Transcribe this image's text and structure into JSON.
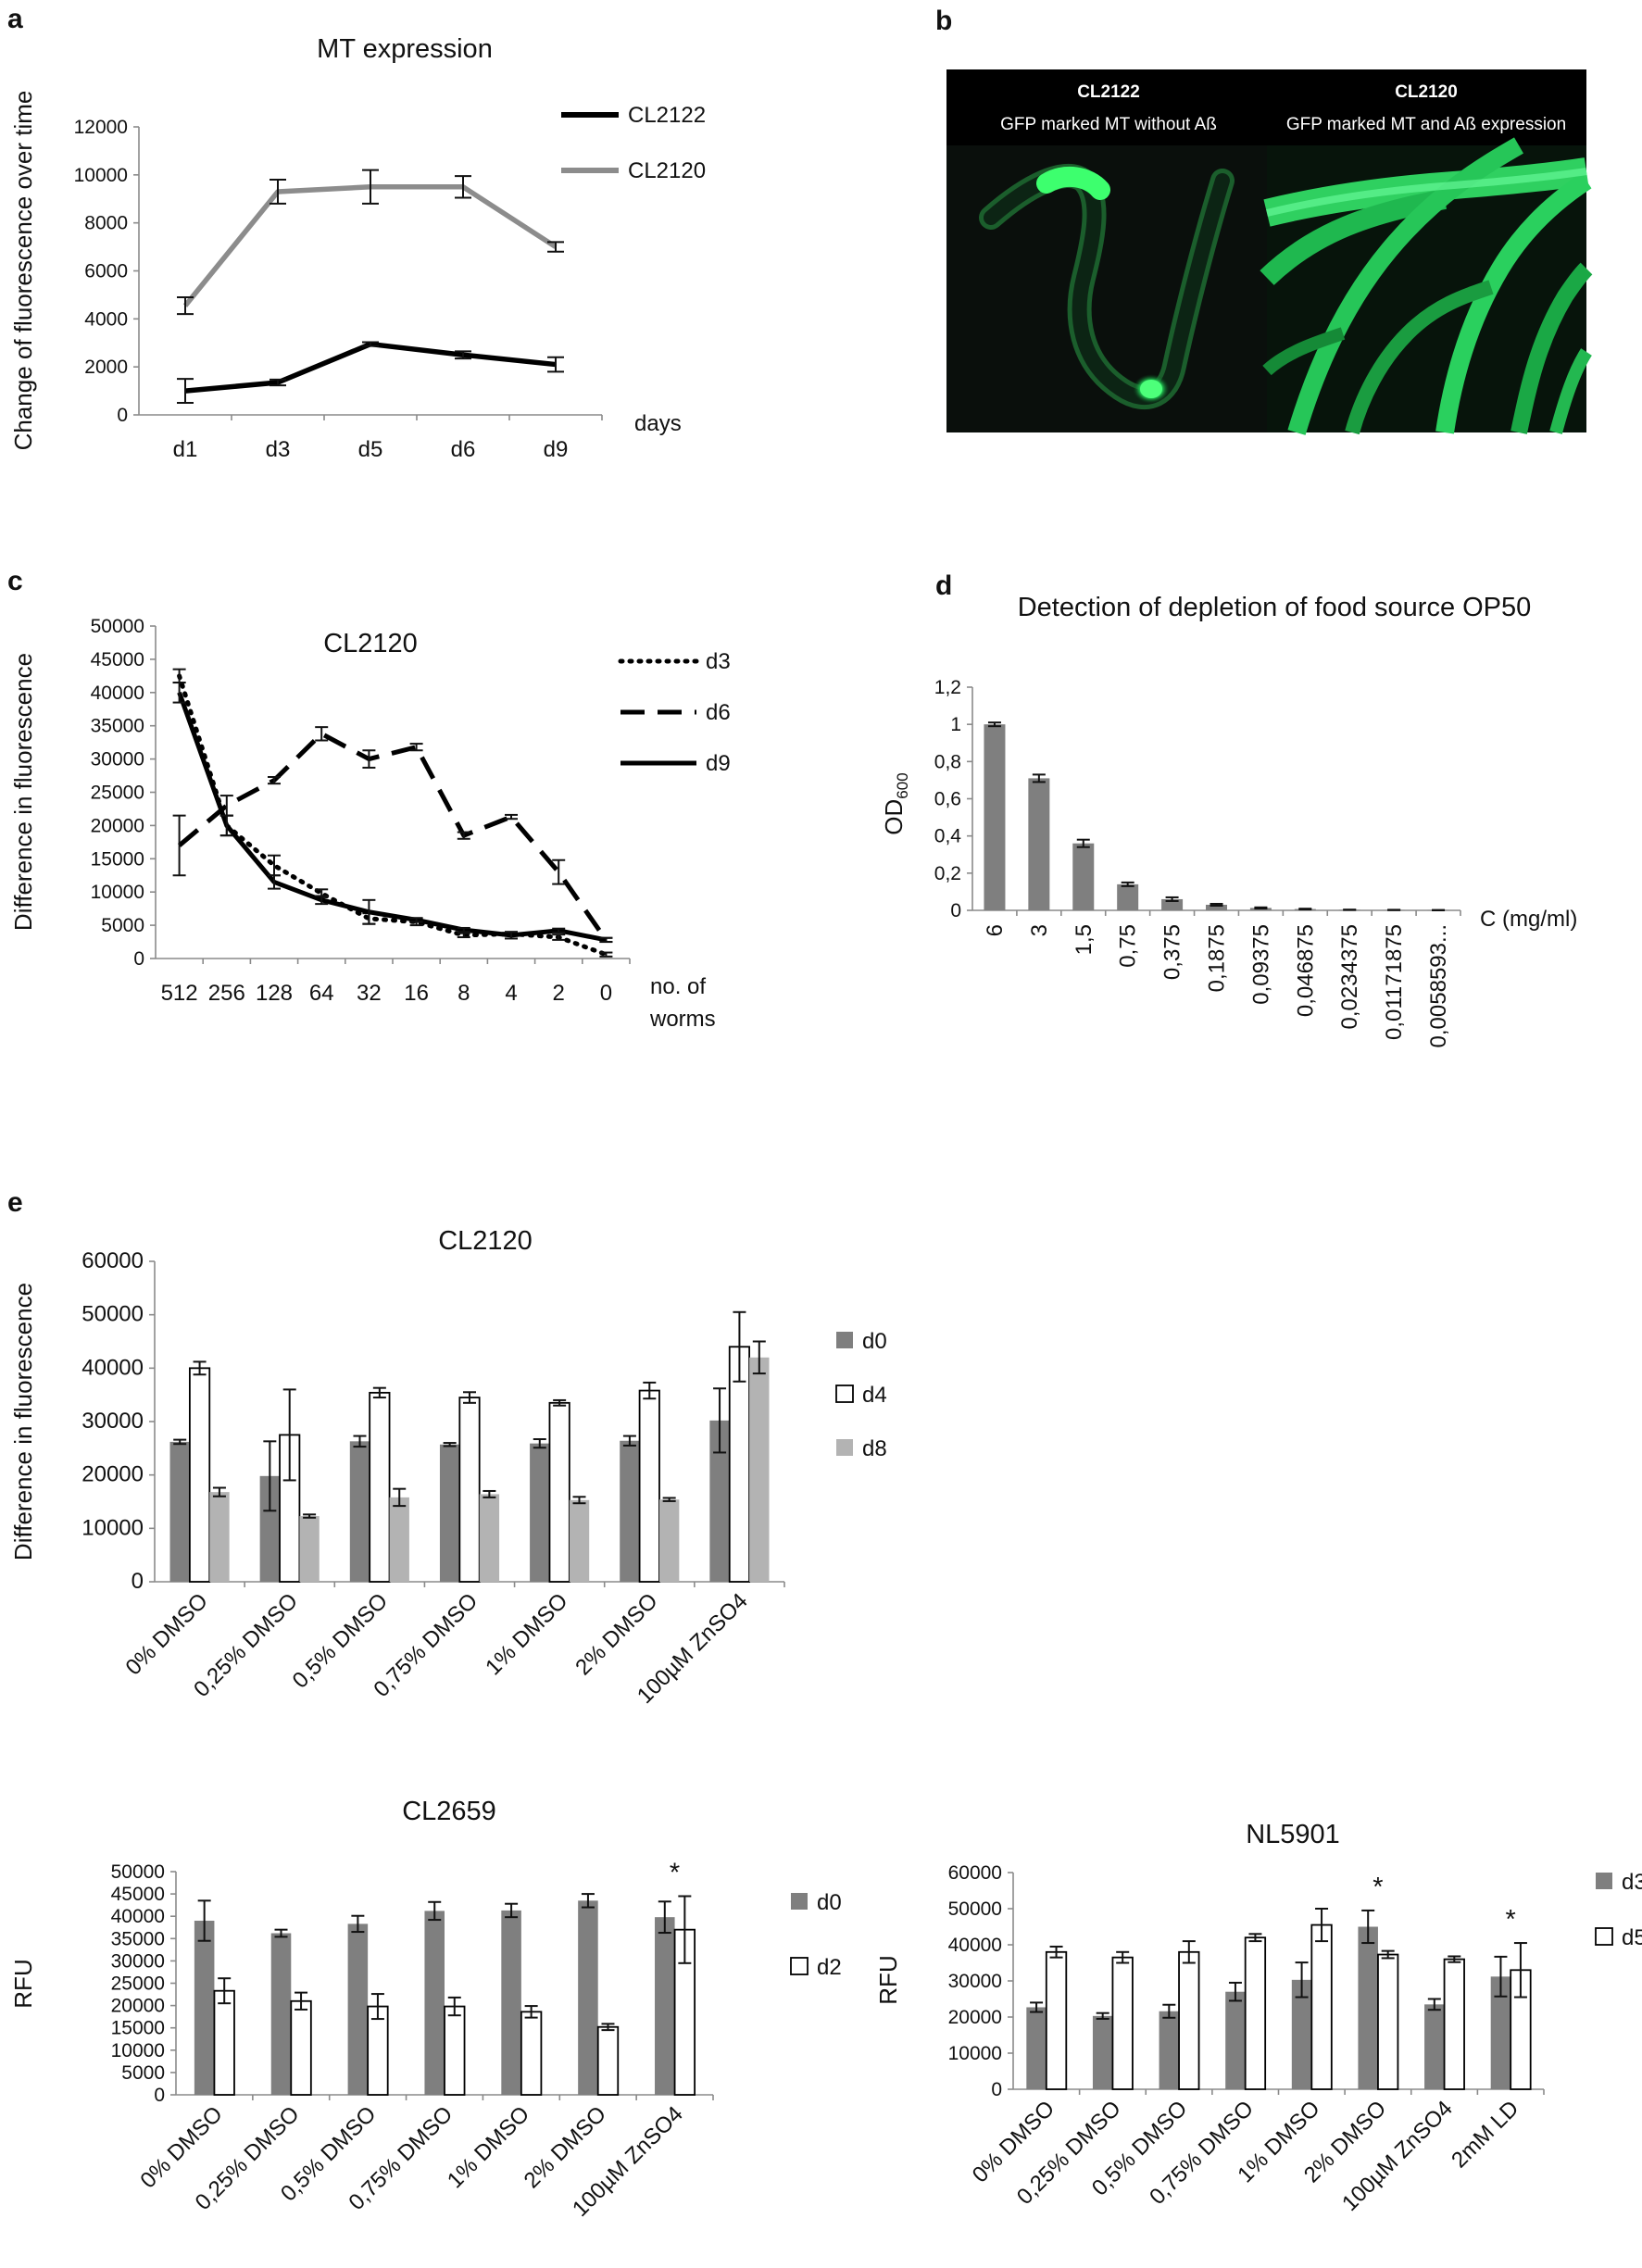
{
  "panels": {
    "a": "a",
    "b": "b",
    "c": "c",
    "d": "d",
    "e": "e"
  },
  "colors": {
    "dark_gray": "#7f7f7f",
    "light_gray": "#b3b3b3",
    "black": "#000000",
    "line_gray": "#8c8c8c"
  },
  "micrograph": {
    "left_title": "CL2122",
    "left_sub": "GFP marked MT without Aß",
    "right_title": "CL2120",
    "right_sub": "GFP marked MT and Aß expression"
  },
  "chart_data": [
    {
      "id": "a",
      "type": "line",
      "title": "MT expression",
      "ylabel": "Change of fluorescence over time",
      "xlabel": "days",
      "categories": [
        "d1",
        "d3",
        "d5",
        "d6",
        "d9"
      ],
      "ylim": [
        0,
        12000
      ],
      "yticks": [
        "0",
        "2000",
        "4000",
        "6000",
        "8000",
        "10000",
        "12000"
      ],
      "legend": "right",
      "series": [
        {
          "name": "CL2122",
          "values": [
            1000,
            1350,
            2950,
            2500,
            2100
          ],
          "err": [
            500,
            120,
            80,
            150,
            300
          ]
        },
        {
          "name": "CL2120",
          "values": [
            4550,
            9300,
            9500,
            9500,
            7000
          ],
          "err": [
            350,
            500,
            700,
            450,
            200
          ]
        }
      ]
    },
    {
      "id": "c",
      "type": "line",
      "title": "CL2120",
      "ylabel": "Difference in fluorescence",
      "xlabel": [
        "no. of",
        "worms"
      ],
      "categories": [
        "512",
        "256",
        "128",
        "64",
        "32",
        "16",
        "8",
        "4",
        "2",
        "0"
      ],
      "ylim": [
        0,
        50000
      ],
      "yticks": [
        "0",
        "5000",
        "10000",
        "15000",
        "20000",
        "25000",
        "30000",
        "35000",
        "40000",
        "45000",
        "50000"
      ],
      "legend": "right",
      "series": [
        {
          "name": "d3",
          "values": [
            42500,
            20000,
            14000,
            9800,
            6000,
            5500,
            3500,
            3700,
            3200,
            600
          ],
          "err": [
            1000,
            1500,
            1500,
            600,
            800,
            500,
            300,
            300,
            400,
            300
          ]
        },
        {
          "name": "d6",
          "values": [
            17000,
            23000,
            26800,
            33800,
            30000,
            31800,
            18500,
            21300,
            13000,
            2800
          ],
          "err": [
            4500,
            1500,
            500,
            1000,
            1300,
            500,
            500,
            300,
            1800,
            300
          ]
        },
        {
          "name": "d9",
          "values": [
            40000,
            20000,
            11500,
            8800,
            7000,
            5800,
            4300,
            3500,
            4200,
            2800
          ],
          "err": [
            1500,
            1500,
            1000,
            600,
            1800,
            300,
            300,
            500,
            300,
            300
          ]
        }
      ]
    },
    {
      "id": "d",
      "type": "bar",
      "title": "Detection of depletion of food source OP50",
      "ylabel": "OD",
      "ylabel_sub": "600",
      "xlabel": "C (mg/ml)",
      "categories": [
        "6",
        "3",
        "1,5",
        "0,75",
        "0,375",
        "0,1875",
        "0,09375",
        "0,046875",
        "0,0234375",
        "0,01171875",
        "0,0058593..."
      ],
      "ylim": [
        0,
        1.2
      ],
      "yticks": [
        "0",
        "0,2",
        "0,4",
        "0,6",
        "0,8",
        "1",
        "1,2"
      ],
      "series": [
        {
          "name": "",
          "values": [
            1.0,
            0.71,
            0.36,
            0.14,
            0.06,
            0.03,
            0.013,
            0.007,
            0.003,
            0.002,
            0.001
          ],
          "err": [
            0.01,
            0.02,
            0.02,
            0.01,
            0.01,
            0.005,
            0.003,
            0.002,
            0.001,
            0.001,
            0.001
          ]
        }
      ]
    },
    {
      "id": "e1",
      "type": "bar",
      "title": "CL2120",
      "ylabel": "Difference in fluorescence",
      "categories": [
        "0% DMSO",
        "0,25% DMSO",
        "0,5% DMSO",
        "0,75% DMSO",
        "1% DMSO",
        "2% DMSO",
        "100µM ZnSO4"
      ],
      "ylim": [
        0,
        60000
      ],
      "yticks": [
        "0",
        "10000",
        "20000",
        "30000",
        "40000",
        "50000",
        "60000"
      ],
      "legend": "right",
      "series": [
        {
          "name": "d0",
          "values": [
            26200,
            19800,
            26300,
            25700,
            25900,
            26400,
            30200
          ],
          "err": [
            400,
            6500,
            1000,
            300,
            800,
            900,
            6000
          ]
        },
        {
          "name": "d4",
          "values": [
            40000,
            27500,
            35400,
            34500,
            33500,
            35800,
            44000
          ],
          "err": [
            1200,
            8500,
            900,
            1000,
            500,
            1500,
            6500
          ]
        },
        {
          "name": "d8",
          "values": [
            16800,
            12300,
            15800,
            16400,
            15300,
            15400,
            42000
          ],
          "err": [
            800,
            300,
            1600,
            600,
            600,
            300,
            3000
          ]
        }
      ]
    },
    {
      "id": "e2",
      "type": "bar",
      "title": "CL2659",
      "ylabel": "RFU",
      "categories": [
        "0% DMSO",
        "0,25% DMSO",
        "0,5% DMSO",
        "0,75% DMSO",
        "1% DMSO",
        "2% DMSO",
        "100µM ZnSO4"
      ],
      "ylim": [
        0,
        50000
      ],
      "yticks": [
        "0",
        "5000",
        "10000",
        "15000",
        "20000",
        "25000",
        "30000",
        "35000",
        "40000",
        "45000",
        "50000"
      ],
      "legend": "right",
      "annotations": [
        "",
        "",
        "",
        "",
        "",
        "",
        "*"
      ],
      "series": [
        {
          "name": "d0",
          "values": [
            39000,
            36200,
            38300,
            41200,
            41300,
            43500,
            39800
          ],
          "err": [
            4500,
            800,
            1800,
            2000,
            1500,
            1500,
            3500
          ]
        },
        {
          "name": "d2",
          "values": [
            23300,
            21000,
            19800,
            19800,
            18600,
            15200,
            37000
          ],
          "err": [
            2800,
            1900,
            2800,
            2000,
            1300,
            700,
            7500
          ]
        }
      ]
    },
    {
      "id": "e3",
      "type": "bar",
      "title": "NL5901",
      "ylabel": "RFU",
      "categories": [
        "0% DMSO",
        "0,25% DMSO",
        "0,5% DMSO",
        "0,75% DMSO",
        "1% DMSO",
        "2% DMSO",
        "100µM ZnSO4",
        "2mM LD"
      ],
      "ylim": [
        0,
        60000
      ],
      "yticks": [
        "0",
        "10000",
        "20000",
        "30000",
        "40000",
        "50000",
        "60000"
      ],
      "legend": "right",
      "annotations": [
        "",
        "",
        "",
        "",
        "",
        "*",
        "",
        "*"
      ],
      "series": [
        {
          "name": "d3",
          "values": [
            22700,
            20300,
            21600,
            27000,
            30300,
            45000,
            23500,
            31200
          ],
          "err": [
            1300,
            800,
            1800,
            2500,
            4800,
            4500,
            1500,
            5500
          ]
        },
        {
          "name": "d5",
          "values": [
            38000,
            36500,
            38000,
            42000,
            45500,
            37300,
            36000,
            33000
          ],
          "err": [
            1500,
            1500,
            3000,
            1000,
            4500,
            1000,
            800,
            7500
          ]
        }
      ]
    }
  ]
}
